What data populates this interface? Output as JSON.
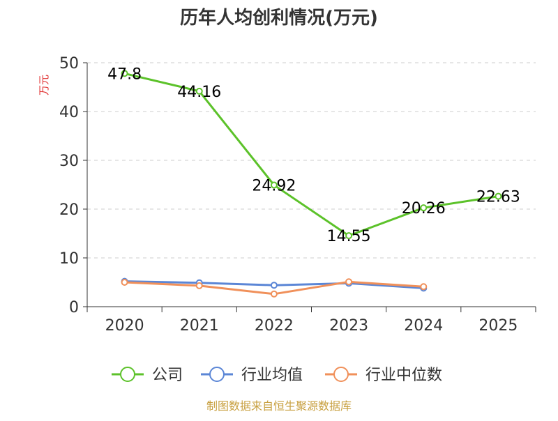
{
  "chart_data": {
    "type": "line",
    "title": "历年人均创利情况(万元)",
    "ylabel": "万元",
    "xlabel": "",
    "ylim": [
      0,
      50
    ],
    "yticks": [
      0,
      10,
      20,
      30,
      40,
      50
    ],
    "categories": [
      "2020",
      "2021",
      "2022",
      "2023",
      "2024",
      "2025"
    ],
    "grid": true,
    "legend_position": "bottom",
    "series": [
      {
        "name": "公司",
        "color": "#5cc22a",
        "values": [
          47.8,
          44.16,
          24.92,
          14.55,
          20.26,
          22.63
        ],
        "labels": [
          "47.8",
          "44.16",
          "24.92",
          "14.55",
          "20.26",
          "22.63"
        ]
      },
      {
        "name": "行业均值",
        "color": "#5b86d6",
        "values": [
          5.2,
          4.9,
          4.4,
          4.8,
          3.8,
          null
        ],
        "labels": null
      },
      {
        "name": "行业中位数",
        "color": "#f0905a",
        "values": [
          5.0,
          4.3,
          2.6,
          5.1,
          4.1,
          null
        ],
        "labels": null
      }
    ]
  },
  "source": "制图数据来自恒生聚源数据库"
}
